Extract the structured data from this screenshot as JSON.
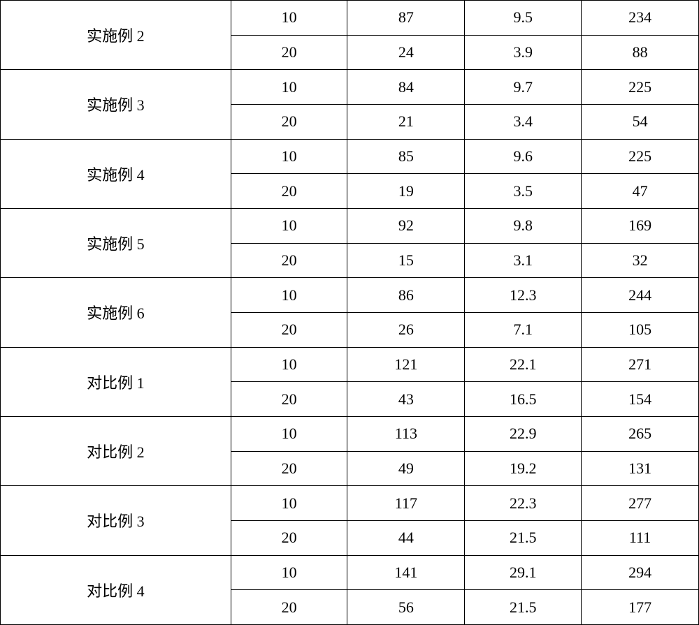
{
  "table": {
    "type": "table",
    "background_color": "#ffffff",
    "border_color": "#000000",
    "text_color": "#000000",
    "font_size": 22,
    "col_widths_pct": [
      33,
      16.7,
      16.8,
      16.7,
      16.8
    ],
    "groups": [
      {
        "label": "实施例 2",
        "rows": [
          [
            "10",
            "87",
            "9.5",
            "234"
          ],
          [
            "20",
            "24",
            "3.9",
            "88"
          ]
        ]
      },
      {
        "label": "实施例 3",
        "rows": [
          [
            "10",
            "84",
            "9.7",
            "225"
          ],
          [
            "20",
            "21",
            "3.4",
            "54"
          ]
        ]
      },
      {
        "label": "实施例 4",
        "rows": [
          [
            "10",
            "85",
            "9.6",
            "225"
          ],
          [
            "20",
            "19",
            "3.5",
            "47"
          ]
        ]
      },
      {
        "label": "实施例 5",
        "rows": [
          [
            "10",
            "92",
            "9.8",
            "169"
          ],
          [
            "20",
            "15",
            "3.1",
            "32"
          ]
        ]
      },
      {
        "label": "实施例 6",
        "rows": [
          [
            "10",
            "86",
            "12.3",
            "244"
          ],
          [
            "20",
            "26",
            "7.1",
            "105"
          ]
        ]
      },
      {
        "label": "对比例 1",
        "rows": [
          [
            "10",
            "121",
            "22.1",
            "271"
          ],
          [
            "20",
            "43",
            "16.5",
            "154"
          ]
        ]
      },
      {
        "label": "对比例 2",
        "rows": [
          [
            "10",
            "113",
            "22.9",
            "265"
          ],
          [
            "20",
            "49",
            "19.2",
            "131"
          ]
        ]
      },
      {
        "label": "对比例 3",
        "rows": [
          [
            "10",
            "117",
            "22.3",
            "277"
          ],
          [
            "20",
            "44",
            "21.5",
            "111"
          ]
        ]
      },
      {
        "label": "对比例 4",
        "rows": [
          [
            "10",
            "141",
            "29.1",
            "294"
          ],
          [
            "20",
            "56",
            "21.5",
            "177"
          ]
        ]
      }
    ]
  }
}
